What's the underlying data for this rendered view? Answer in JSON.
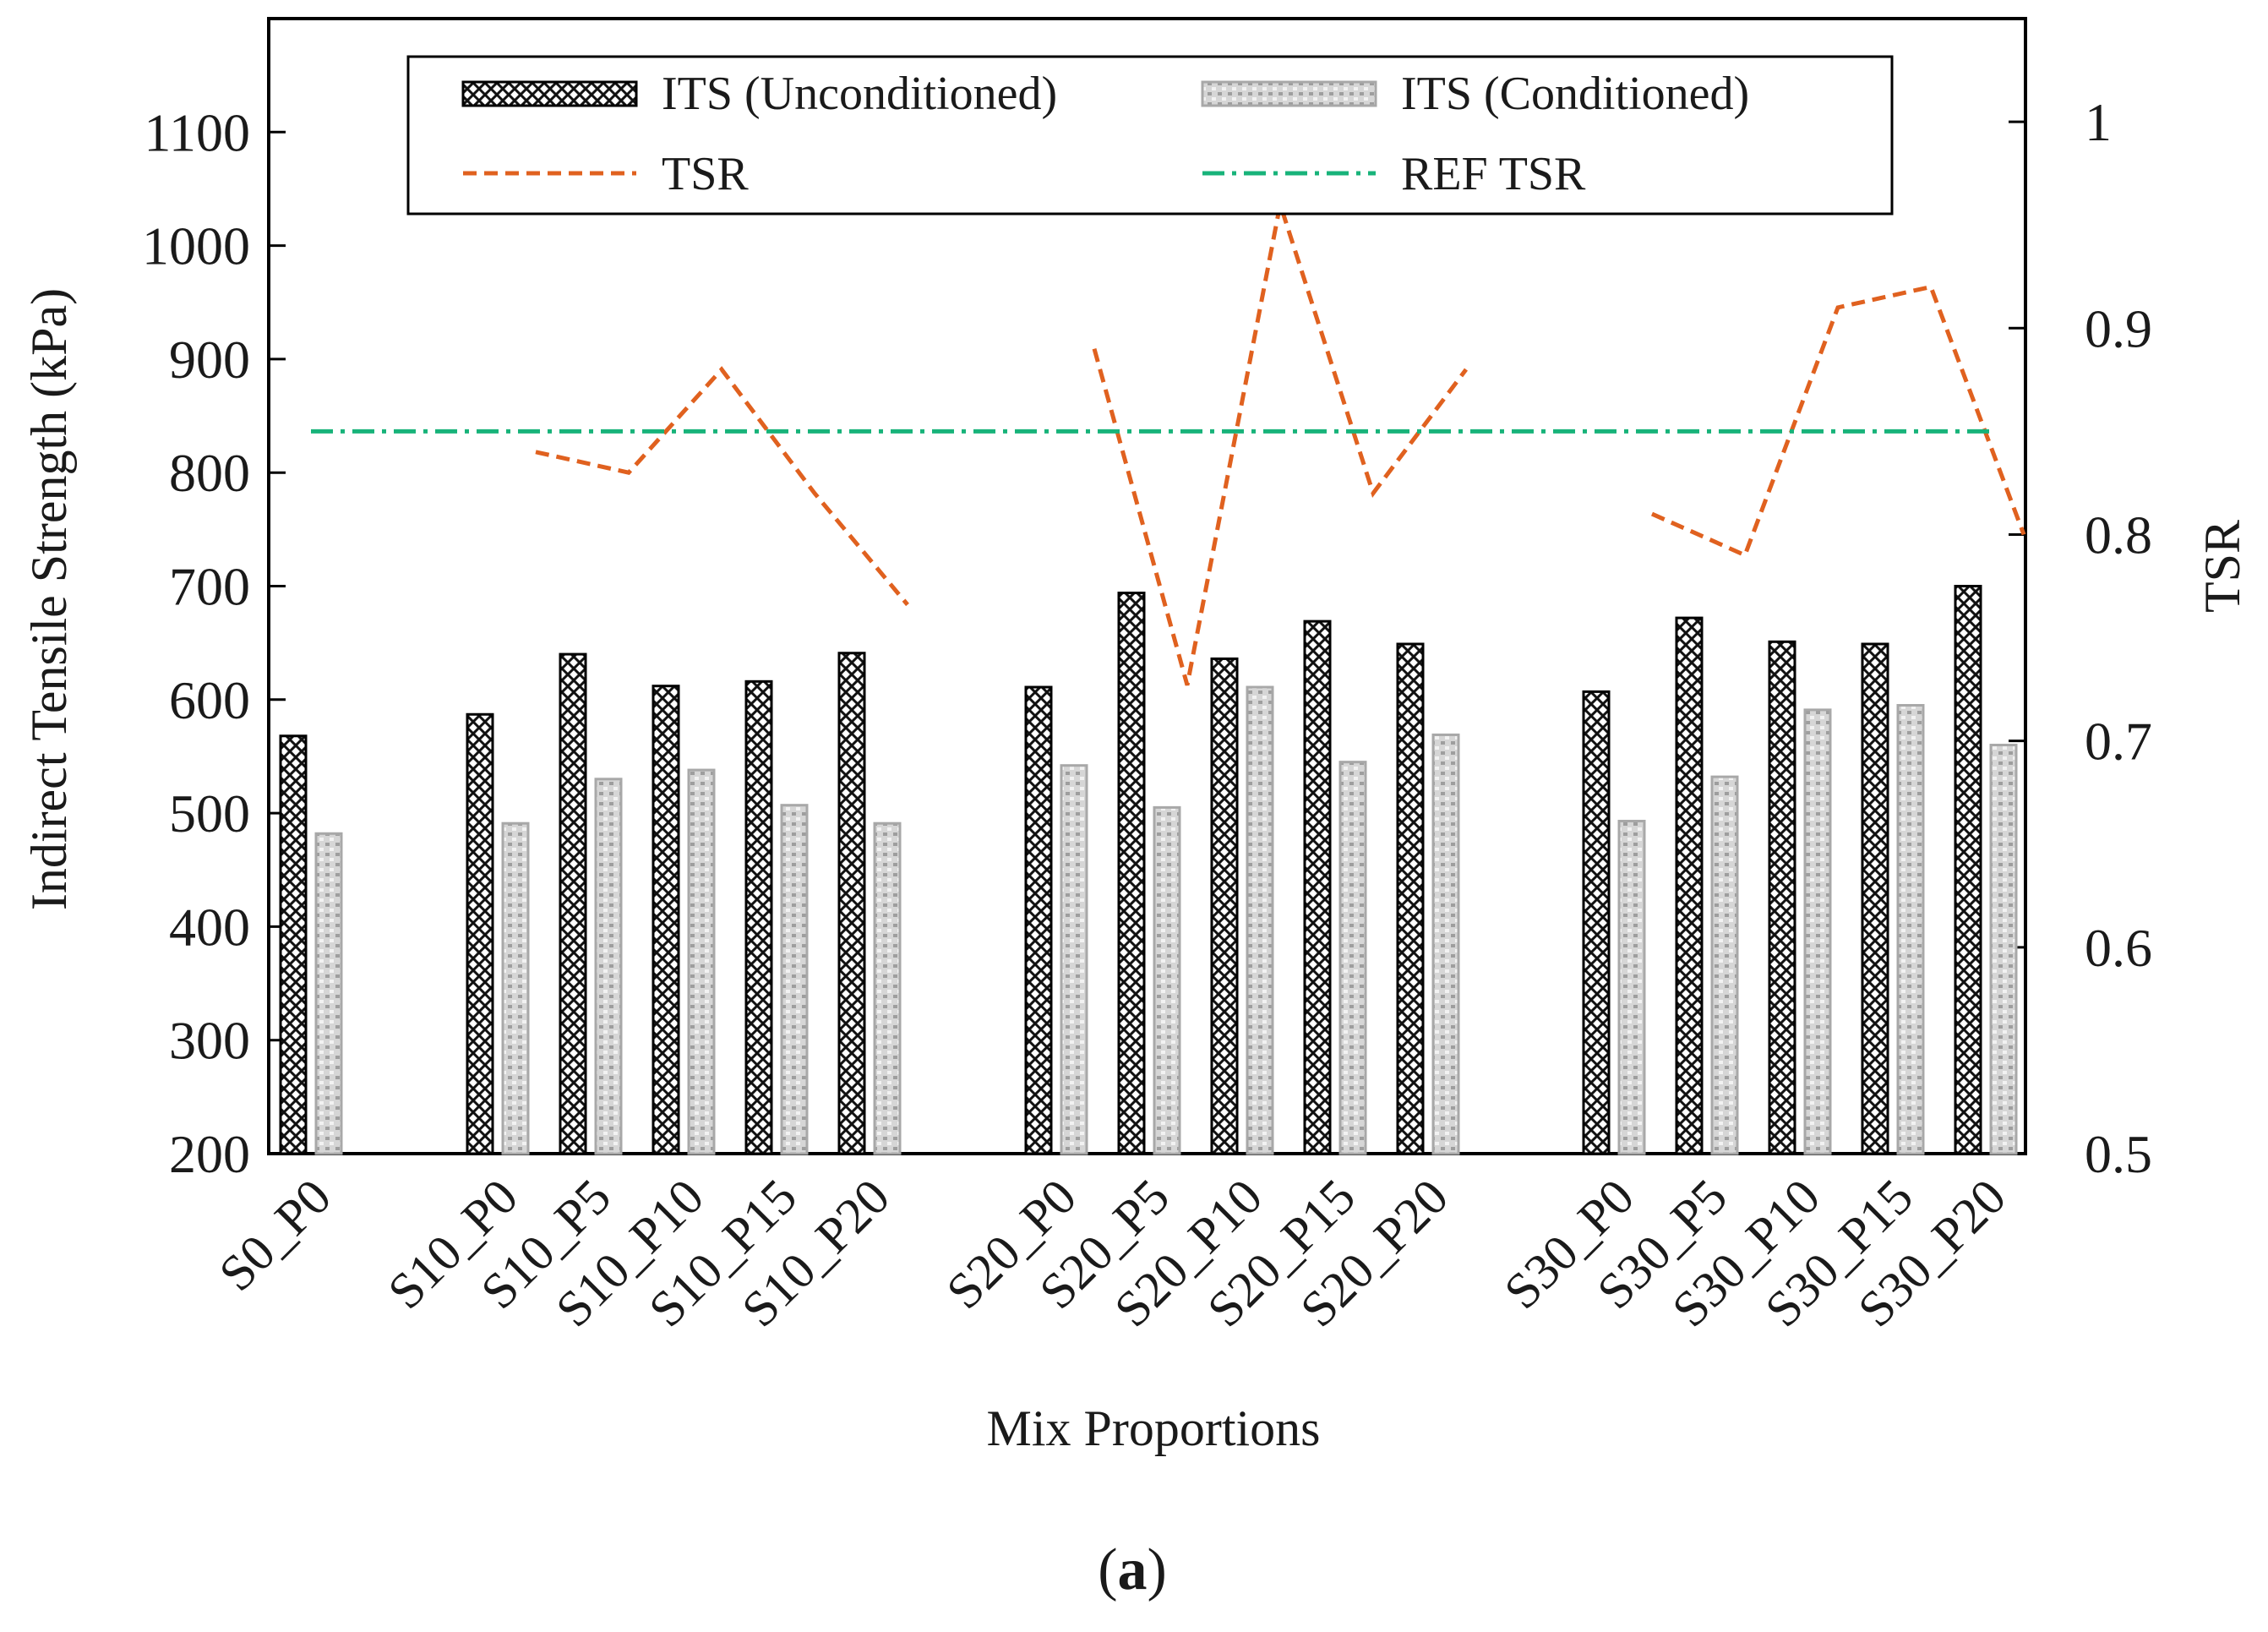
{
  "chart_data": {
    "type": "bar",
    "title": "",
    "xlabel": "Mix Proportions",
    "ylabel": "Indirect Tensile Strength (kPa)",
    "y2label": "TSR",
    "ylim": [
      200,
      1200
    ],
    "y2lim": [
      0.5,
      1.05
    ],
    "yticks": [
      200,
      300,
      400,
      500,
      600,
      700,
      800,
      900,
      1000,
      1100
    ],
    "y2ticks": [
      0.5,
      0.6,
      0.7,
      0.8,
      0.9,
      1
    ],
    "y2tick_labels": [
      "0.5",
      "0.6",
      "0.7",
      "0.8",
      "0.9",
      "1"
    ],
    "categories": [
      "S0_P0",
      "S10_P0",
      "S10_P5",
      "S10_P10",
      "S10_P15",
      "S10_P20",
      "S20_P0",
      "S20_P5",
      "S20_P10",
      "S20_P15",
      "S20_P20",
      "S30_P0",
      "S30_P5",
      "S30_P10",
      "S30_P15",
      "S30_P20"
    ],
    "category_groups": [
      [
        0
      ],
      [
        1,
        2,
        3,
        4,
        5
      ],
      [
        6,
        7,
        8,
        9,
        10
      ],
      [
        11,
        12,
        13,
        14,
        15
      ]
    ],
    "series": [
      {
        "name": "ITS (Unconditioned)",
        "kind": "bar",
        "axis": "left",
        "pattern": "crosshatch",
        "values": [
          568,
          587,
          640,
          612,
          616,
          641,
          611,
          694,
          636,
          669,
          649,
          607,
          672,
          651,
          649,
          700
        ]
      },
      {
        "name": "ITS (Conditioned)",
        "kind": "bar",
        "axis": "left",
        "pattern": "dotted-grey",
        "values": [
          482,
          491,
          530,
          538,
          507,
          491,
          542,
          505,
          611,
          545,
          569,
          493,
          532,
          591,
          595,
          560
        ]
      },
      {
        "name": "TSR",
        "kind": "line",
        "axis": "right",
        "style": "dashed",
        "color": "#e0611f",
        "segments": [
          [
            0.84,
            0.83,
            0.88,
            0.82,
            0.766
          ],
          [
            0.89,
            0.727,
            0.96,
            0.82,
            0.88
          ],
          [
            0.81,
            0.79,
            0.91,
            0.92,
            0.8
          ]
        ]
      },
      {
        "name": "REF TSR",
        "kind": "line",
        "axis": "right",
        "style": "dashdot",
        "color": "#18b37a",
        "value": 0.85
      }
    ],
    "legend": {
      "position": "top-center",
      "entries": [
        "ITS (Unconditioned)",
        "ITS (Conditioned)",
        "TSR",
        "REF TSR"
      ]
    },
    "grid": false
  },
  "caption": {
    "paren_open": "(",
    "letter": "a",
    "paren_close": ")"
  },
  "colors": {
    "tsr": "#e0611f",
    "ref_tsr": "#18b37a",
    "conditioned_fill": "#c8c8c8",
    "axis": "#000000"
  }
}
